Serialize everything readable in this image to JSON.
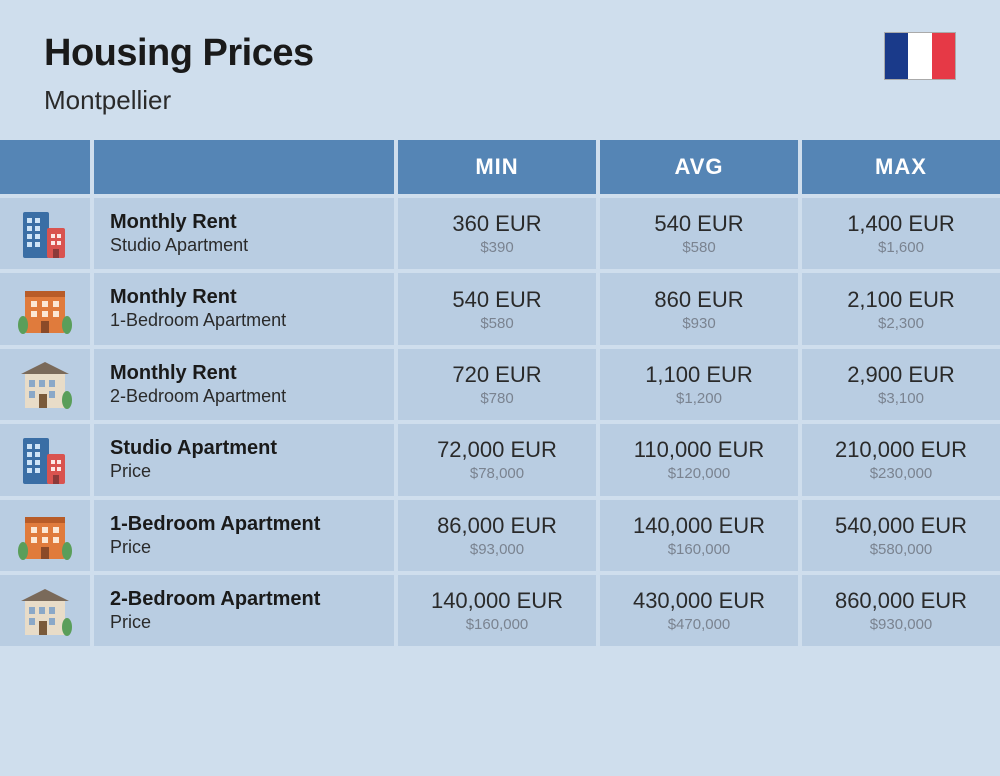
{
  "header": {
    "title": "Housing Prices",
    "subtitle": "Montpellier",
    "flag_colors": [
      "#1a3a8a",
      "#ffffff",
      "#e63946"
    ]
  },
  "table": {
    "columns": [
      "MIN",
      "AVG",
      "MAX"
    ],
    "colors": {
      "page_bg": "#cfdeed",
      "header_bg": "#5585b5",
      "header_text": "#ffffff",
      "cell_bg": "#b9cde2",
      "primary_text": "#2a2a2a",
      "secondary_text": "#7a8390"
    },
    "rows": [
      {
        "icon": "building-tall",
        "title": "Monthly Rent",
        "subtitle": "Studio Apartment",
        "min": {
          "eur": "360 EUR",
          "usd": "$390"
        },
        "avg": {
          "eur": "540 EUR",
          "usd": "$580"
        },
        "max": {
          "eur": "1,400 EUR",
          "usd": "$1,600"
        }
      },
      {
        "icon": "building-wide",
        "title": "Monthly Rent",
        "subtitle": "1-Bedroom Apartment",
        "min": {
          "eur": "540 EUR",
          "usd": "$580"
        },
        "avg": {
          "eur": "860 EUR",
          "usd": "$930"
        },
        "max": {
          "eur": "2,100 EUR",
          "usd": "$2,300"
        }
      },
      {
        "icon": "building-house",
        "title": "Monthly Rent",
        "subtitle": "2-Bedroom Apartment",
        "min": {
          "eur": "720 EUR",
          "usd": "$780"
        },
        "avg": {
          "eur": "1,100 EUR",
          "usd": "$1,200"
        },
        "max": {
          "eur": "2,900 EUR",
          "usd": "$3,100"
        }
      },
      {
        "icon": "building-tall",
        "title": "Studio Apartment",
        "subtitle": "Price",
        "min": {
          "eur": "72,000 EUR",
          "usd": "$78,000"
        },
        "avg": {
          "eur": "110,000 EUR",
          "usd": "$120,000"
        },
        "max": {
          "eur": "210,000 EUR",
          "usd": "$230,000"
        }
      },
      {
        "icon": "building-wide",
        "title": "1-Bedroom Apartment",
        "subtitle": "Price",
        "min": {
          "eur": "86,000 EUR",
          "usd": "$93,000"
        },
        "avg": {
          "eur": "140,000 EUR",
          "usd": "$160,000"
        },
        "max": {
          "eur": "540,000 EUR",
          "usd": "$580,000"
        }
      },
      {
        "icon": "building-house",
        "title": "2-Bedroom Apartment",
        "subtitle": "Price",
        "min": {
          "eur": "140,000 EUR",
          "usd": "$160,000"
        },
        "avg": {
          "eur": "430,000 EUR",
          "usd": "$470,000"
        },
        "max": {
          "eur": "860,000 EUR",
          "usd": "$930,000"
        }
      }
    ]
  }
}
